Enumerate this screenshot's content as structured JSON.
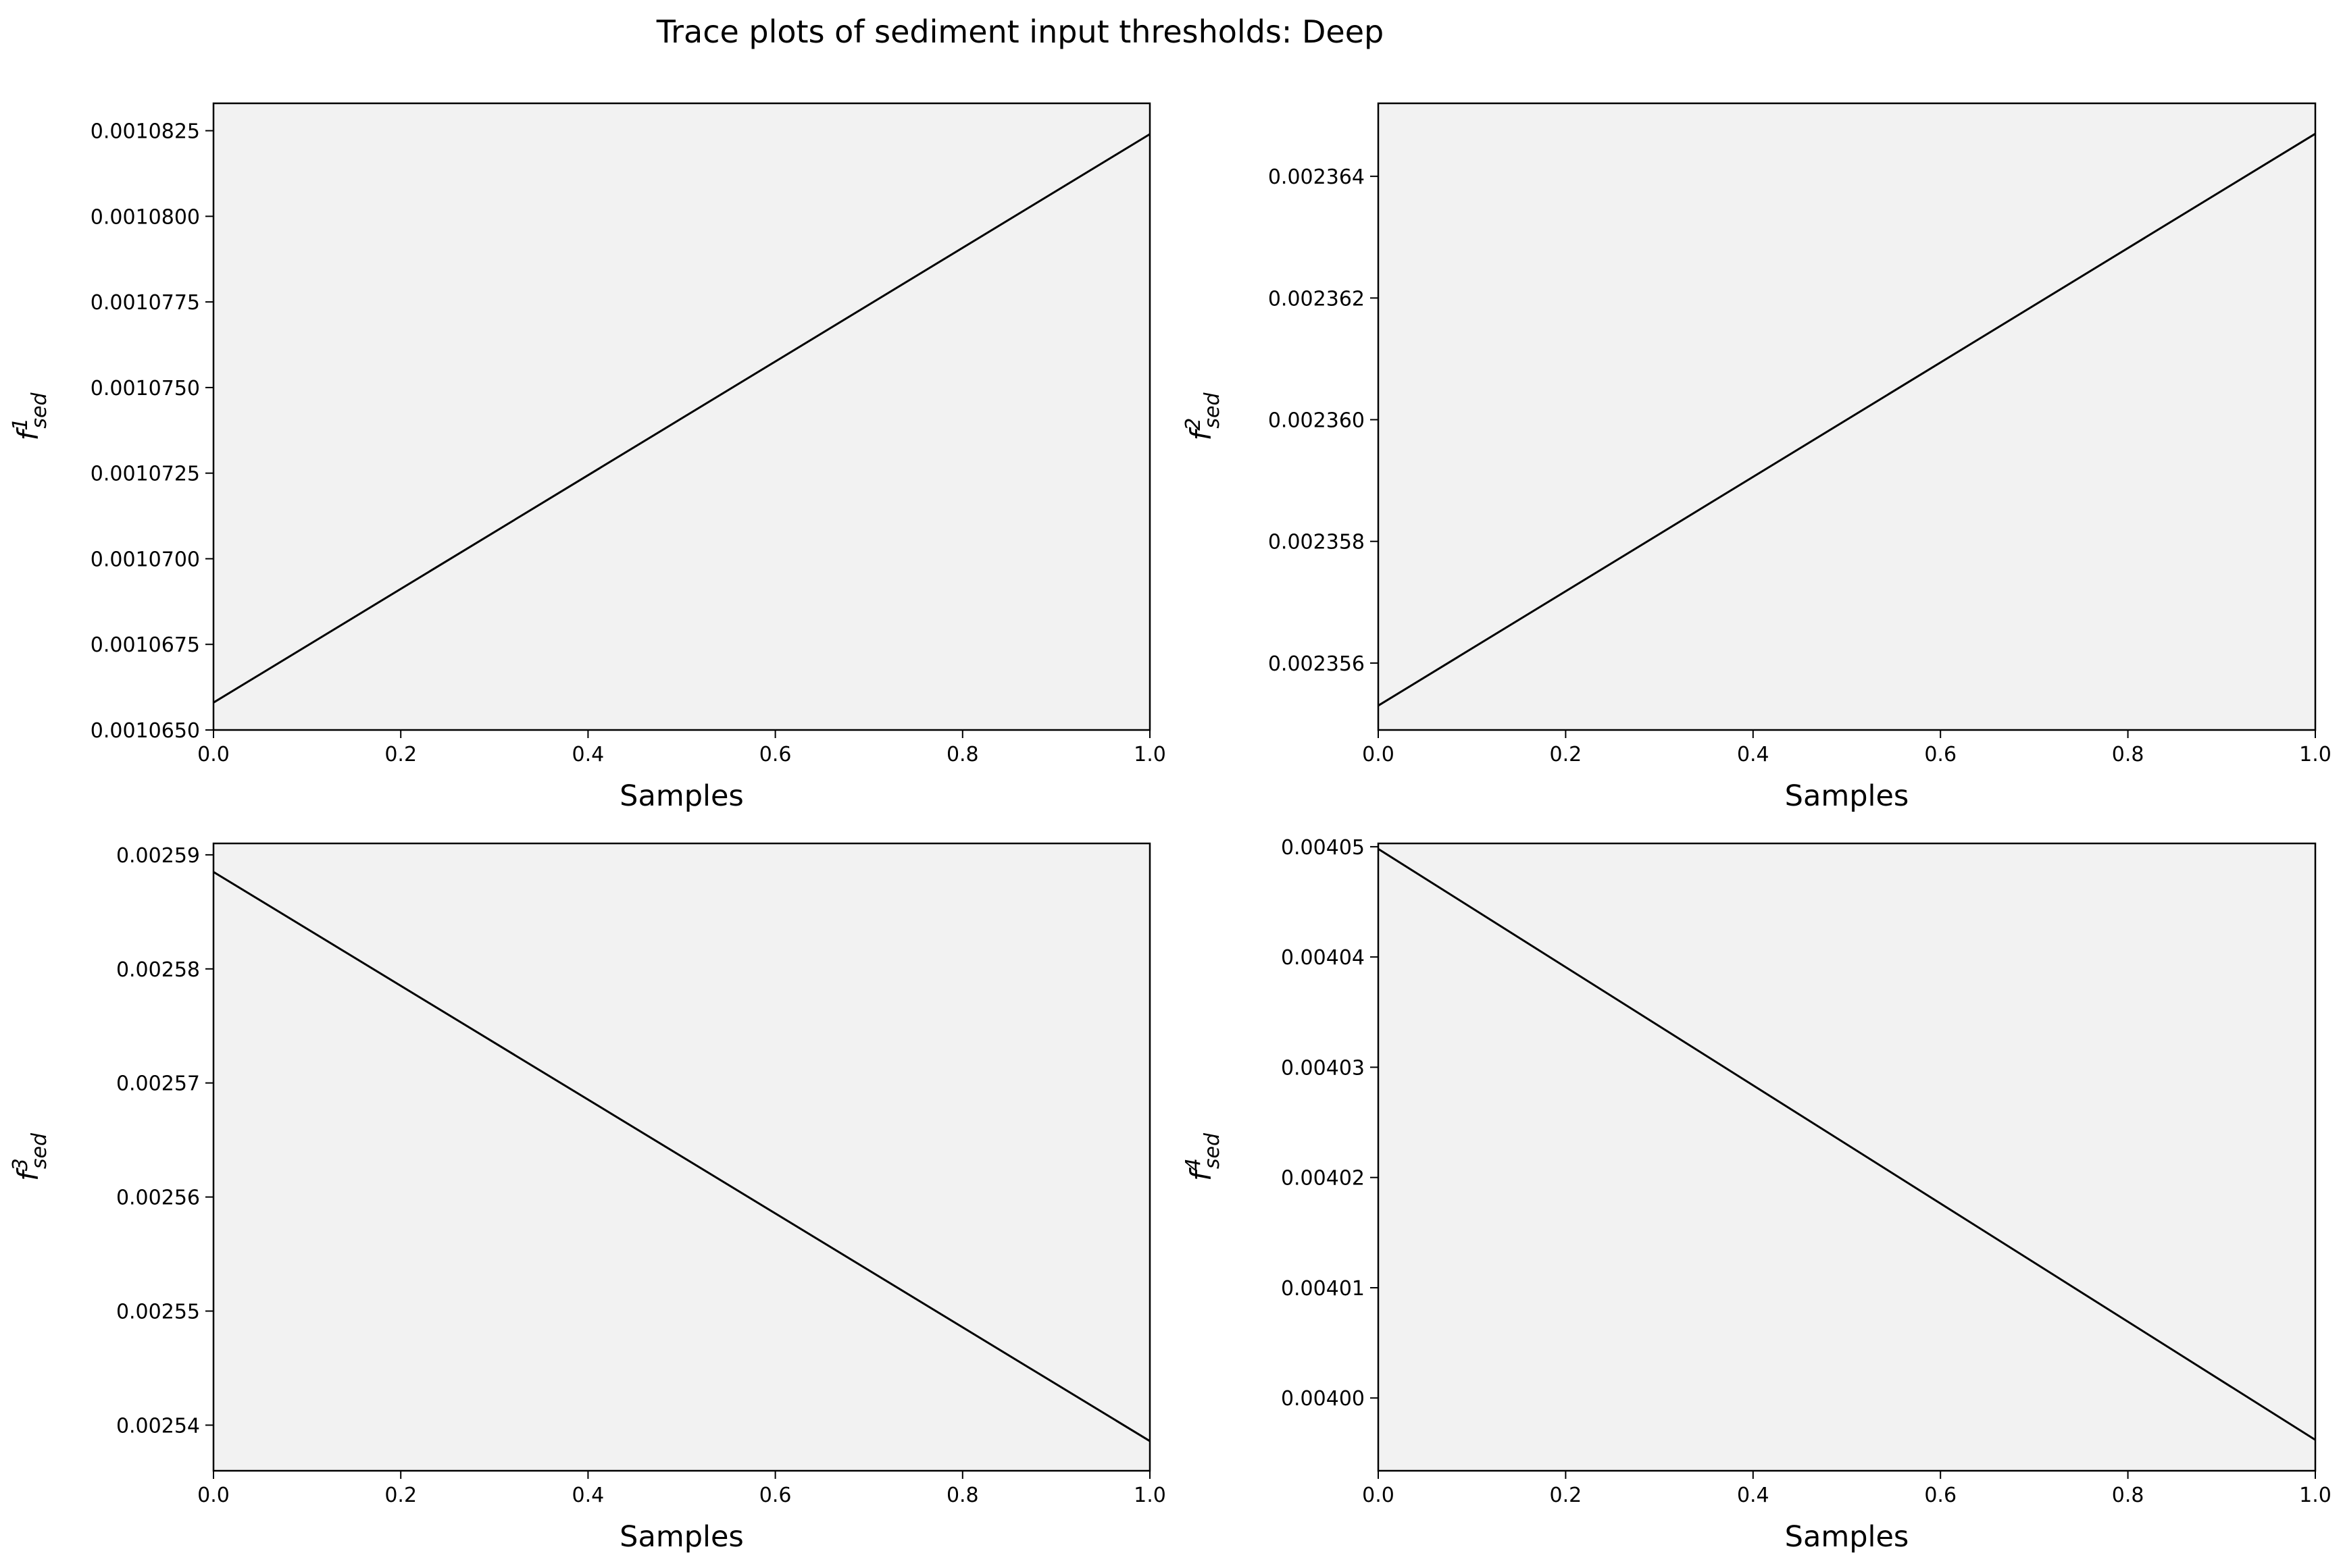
{
  "figure": {
    "title": "Trace plots of sediment input thresholds: Deep",
    "background": "#ffffff",
    "axes_facecolor": "#f2f2f2",
    "line_color": "#000000"
  },
  "chart_data": [
    {
      "type": "line",
      "xlabel": "Samples",
      "ylabel": {
        "base": "f",
        "sup": "1",
        "sub": "sed"
      },
      "xlim": [
        0.0,
        1.0
      ],
      "ylim": [
        0.001065,
        0.0010833
      ],
      "xticks": [
        "0.0",
        "0.2",
        "0.4",
        "0.6",
        "0.8",
        "1.0"
      ],
      "yticks": [
        {
          "value": 0.001065,
          "label": "0.0010650"
        },
        {
          "value": 0.0010675,
          "label": "0.0010675"
        },
        {
          "value": 0.00107,
          "label": "0.0010700"
        },
        {
          "value": 0.0010725,
          "label": "0.0010725"
        },
        {
          "value": 0.001075,
          "label": "0.0010750"
        },
        {
          "value": 0.0010775,
          "label": "0.0010775"
        },
        {
          "value": 0.00108,
          "label": "0.0010800"
        },
        {
          "value": 0.0010825,
          "label": "0.0010825"
        }
      ],
      "grid": false,
      "x": [
        0.0,
        1.0
      ],
      "y": [
        0.0010658,
        0.0010824
      ]
    },
    {
      "type": "line",
      "xlabel": "Samples",
      "ylabel": {
        "base": "f",
        "sup": "2",
        "sub": "sed"
      },
      "xlim": [
        0.0,
        1.0
      ],
      "ylim": [
        0.0023549,
        0.0023652
      ],
      "xticks": [
        "0.0",
        "0.2",
        "0.4",
        "0.6",
        "0.8",
        "1.0"
      ],
      "yticks": [
        {
          "value": 0.002356,
          "label": "0.002356"
        },
        {
          "value": 0.002358,
          "label": "0.002358"
        },
        {
          "value": 0.00236,
          "label": "0.002360"
        },
        {
          "value": 0.002362,
          "label": "0.002362"
        },
        {
          "value": 0.002364,
          "label": "0.002364"
        }
      ],
      "grid": false,
      "x": [
        0.0,
        1.0
      ],
      "y": [
        0.0023553,
        0.0023647
      ]
    },
    {
      "type": "line",
      "xlabel": "Samples",
      "ylabel": {
        "base": "f",
        "sup": "3",
        "sub": "sed"
      },
      "xlim": [
        0.0,
        1.0
      ],
      "ylim": [
        0.002536,
        0.002591
      ],
      "xticks": [
        "0.0",
        "0.2",
        "0.4",
        "0.6",
        "0.8",
        "1.0"
      ],
      "yticks": [
        {
          "value": 0.00254,
          "label": "0.00254"
        },
        {
          "value": 0.00255,
          "label": "0.00255"
        },
        {
          "value": 0.00256,
          "label": "0.00256"
        },
        {
          "value": 0.00257,
          "label": "0.00257"
        },
        {
          "value": 0.00258,
          "label": "0.00258"
        },
        {
          "value": 0.00259,
          "label": "0.00259"
        }
      ],
      "grid": false,
      "x": [
        0.0,
        1.0
      ],
      "y": [
        0.0025885,
        0.0025386
      ]
    },
    {
      "type": "line",
      "xlabel": "Samples",
      "ylabel": {
        "base": "f",
        "sup": "4",
        "sub": "sed"
      },
      "xlim": [
        0.0,
        1.0
      ],
      "ylim": [
        0.0039934,
        0.0040503
      ],
      "xticks": [
        "0.0",
        "0.2",
        "0.4",
        "0.6",
        "0.8",
        "1.0"
      ],
      "yticks": [
        {
          "value": 0.004,
          "label": "0.00400"
        },
        {
          "value": 0.00401,
          "label": "0.00401"
        },
        {
          "value": 0.00402,
          "label": "0.00402"
        },
        {
          "value": 0.00403,
          "label": "0.00403"
        },
        {
          "value": 0.00404,
          "label": "0.00404"
        },
        {
          "value": 0.00405,
          "label": "0.00405"
        }
      ],
      "grid": false,
      "x": [
        0.0,
        1.0
      ],
      "y": [
        0.0040498,
        0.0039962
      ]
    }
  ]
}
